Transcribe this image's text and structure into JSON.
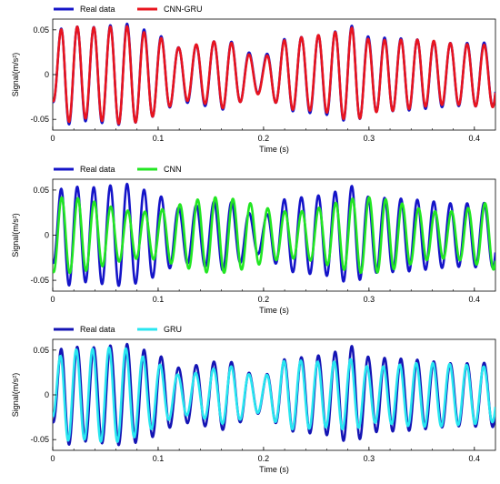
{
  "chart_data": [
    {
      "type": "line",
      "xlabel": "Time (s)",
      "ylabel": "Signal(m/s²)",
      "xlim": [
        0,
        0.42
      ],
      "ylim": [
        -0.062,
        0.062
      ],
      "xticks": [
        0,
        0.1,
        0.2,
        0.3,
        0.4
      ],
      "xtick_labels": [
        "0",
        "0.1",
        "0.2",
        "0.3",
        "0.4"
      ],
      "yticks": [
        0.05,
        0,
        -0.05
      ],
      "ytick_labels": [
        "0.05",
        "0",
        "-0.05"
      ],
      "legend_position": "top-left",
      "series": [
        {
          "name": "Real data",
          "color": "#1414c8",
          "model": "real"
        },
        {
          "name": "CNN-GRU",
          "color": "#e8141e",
          "model": "cnngru"
        }
      ]
    },
    {
      "type": "line",
      "xlabel": "Time (s)",
      "ylabel": "Signal(m/s²)",
      "xlim": [
        0,
        0.42
      ],
      "ylim": [
        -0.062,
        0.062
      ],
      "xticks": [
        0,
        0.1,
        0.2,
        0.3,
        0.4
      ],
      "xtick_labels": [
        "0",
        "0.1",
        "0.2",
        "0.3",
        "0.4"
      ],
      "yticks": [
        0.05,
        0,
        -0.05
      ],
      "ytick_labels": [
        "0.05",
        "0",
        "-0.05"
      ],
      "legend_position": "top-left",
      "series": [
        {
          "name": "Real data",
          "color": "#1414c8",
          "model": "real"
        },
        {
          "name": "CNN",
          "color": "#22e622",
          "model": "cnn"
        }
      ]
    },
    {
      "type": "line",
      "xlabel": "Time (s)",
      "ylabel": "Signal(m/s²)",
      "xlim": [
        0,
        0.42
      ],
      "ylim": [
        -0.062,
        0.062
      ],
      "xticks": [
        0,
        0.1,
        0.2,
        0.3,
        0.4
      ],
      "xtick_labels": [
        "0",
        "0.1",
        "0.2",
        "0.3",
        "0.4"
      ],
      "yticks": [
        0.05,
        0,
        -0.05
      ],
      "ytick_labels": [
        "0.05",
        "0",
        "-0.05"
      ],
      "legend_position": "top-left",
      "series": [
        {
          "name": "Real data",
          "color": "#1414b4",
          "model": "real"
        },
        {
          "name": "GRU",
          "color": "#28e6f0",
          "model": "gru"
        }
      ]
    }
  ],
  "signal": {
    "frequency_hz": 62,
    "envelope_t": [
      0,
      0.01,
      0.03,
      0.07,
      0.1,
      0.12,
      0.14,
      0.165,
      0.19,
      0.2,
      0.22,
      0.26,
      0.285,
      0.3,
      0.34,
      0.38,
      0.42
    ],
    "envelope_amp": [
      0.03,
      0.057,
      0.052,
      0.057,
      0.045,
      0.03,
      0.034,
      0.04,
      0.022,
      0.02,
      0.04,
      0.045,
      0.055,
      0.042,
      0.04,
      0.035,
      0.036
    ]
  }
}
